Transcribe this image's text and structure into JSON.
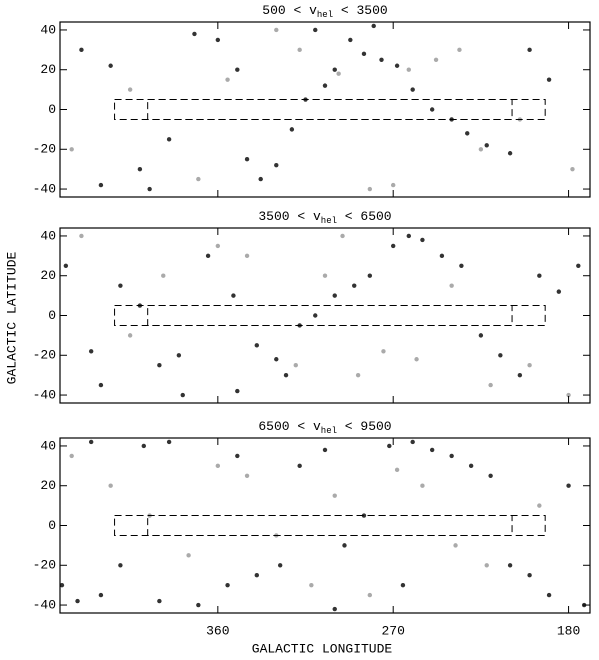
{
  "x_label": "GALACTIC LONGITUDE",
  "y_label": "GALACTIC LATITUDE",
  "chart_data": [
    {
      "type": "scatter",
      "title": {
        "pre": "500 < v",
        "sub": "hel",
        "post": " < 3500"
      },
      "xlim": [
        441,
        169
      ],
      "ylim": [
        -44,
        44
      ],
      "xticks": [
        360,
        270,
        180
      ],
      "yticks": [
        -40,
        -20,
        0,
        20,
        40
      ],
      "show_xtick_labels": false,
      "regions": {
        "outer": [
          413,
          192
        ],
        "inner": [
          396,
          209
        ],
        "b": [
          -5,
          5
        ]
      },
      "series": [
        {
          "color": "#333333",
          "x": [
            430,
            415,
            400,
            385,
            372,
            360,
            350,
            345,
            338,
            330,
            322,
            315,
            305,
            300,
            292,
            285,
            276,
            268,
            260,
            250,
            240,
            232,
            222,
            210,
            200,
            190,
            420,
            395,
            310,
            280
          ],
          "y": [
            30,
            22,
            -30,
            -15,
            38,
            35,
            20,
            -25,
            -35,
            -28,
            -10,
            5,
            12,
            20,
            35,
            28,
            25,
            22,
            10,
            0,
            -5,
            -12,
            -18,
            -22,
            30,
            15,
            -38,
            -40,
            40,
            42
          ]
        },
        {
          "color": "#aaaaaa",
          "x": [
            435,
            405,
            370,
            355,
            330,
            318,
            298,
            282,
            270,
            262,
            248,
            236,
            225,
            205,
            178
          ],
          "y": [
            -20,
            10,
            -35,
            15,
            40,
            30,
            18,
            -40,
            -38,
            20,
            25,
            30,
            -20,
            -5,
            -30
          ]
        }
      ]
    },
    {
      "type": "scatter",
      "title": {
        "pre": "3500 < v",
        "sub": "hel",
        "post": " < 6500"
      },
      "xlim": [
        441,
        169
      ],
      "ylim": [
        -44,
        44
      ],
      "xticks": [
        360,
        270,
        180
      ],
      "yticks": [
        -40,
        -20,
        0,
        20,
        40
      ],
      "show_xtick_labels": false,
      "regions": {
        "outer": [
          413,
          192
        ],
        "inner": [
          396,
          209
        ],
        "b": [
          -5,
          5
        ]
      },
      "series": [
        {
          "color": "#333333",
          "x": [
            438,
            425,
            410,
            400,
            390,
            378,
            365,
            352,
            340,
            330,
            325,
            318,
            310,
            300,
            290,
            282,
            270,
            262,
            255,
            245,
            235,
            225,
            215,
            205,
            195,
            185,
            175,
            420,
            380,
            350
          ],
          "y": [
            25,
            -18,
            15,
            5,
            -25,
            -40,
            30,
            10,
            -15,
            -22,
            -30,
            -5,
            0,
            10,
            15,
            20,
            35,
            40,
            38,
            30,
            25,
            -10,
            -20,
            -30,
            20,
            12,
            25,
            -35,
            -20,
            -38
          ]
        },
        {
          "color": "#aaaaaa",
          "x": [
            430,
            405,
            388,
            360,
            345,
            320,
            305,
            296,
            288,
            275,
            258,
            240,
            220,
            200,
            180
          ],
          "y": [
            40,
            -10,
            20,
            35,
            30,
            -25,
            20,
            40,
            -30,
            -18,
            -22,
            15,
            -35,
            -25,
            -40
          ]
        }
      ]
    },
    {
      "type": "scatter",
      "title": {
        "pre": "6500 < v",
        "sub": "hel",
        "post": " < 9500"
      },
      "xlim": [
        441,
        169
      ],
      "ylim": [
        -44,
        44
      ],
      "xticks": [
        360,
        270,
        180
      ],
      "yticks": [
        -40,
        -20,
        0,
        20,
        40
      ],
      "show_xtick_labels": true,
      "regions": {
        "outer": [
          413,
          192
        ],
        "inner": [
          396,
          209
        ],
        "b": [
          -5,
          5
        ]
      },
      "series": [
        {
          "color": "#333333",
          "x": [
            440,
            432,
            420,
            410,
            398,
            385,
            370,
            355,
            340,
            328,
            318,
            305,
            295,
            285,
            272,
            260,
            250,
            240,
            230,
            220,
            210,
            200,
            190,
            180,
            172,
            425,
            390,
            350,
            300,
            265
          ],
          "y": [
            -30,
            -38,
            -35,
            -20,
            40,
            42,
            -40,
            -30,
            -25,
            -20,
            30,
            38,
            -10,
            5,
            40,
            42,
            38,
            35,
            30,
            25,
            -20,
            -25,
            -35,
            20,
            -40,
            42,
            -38,
            35,
            -42,
            -30
          ]
        },
        {
          "color": "#aaaaaa",
          "x": [
            435,
            415,
            395,
            375,
            360,
            345,
            330,
            312,
            300,
            282,
            268,
            255,
            238,
            222,
            195
          ],
          "y": [
            35,
            20,
            5,
            -15,
            30,
            25,
            -5,
            -30,
            15,
            -35,
            28,
            20,
            -10,
            -20,
            10
          ]
        }
      ]
    }
  ]
}
